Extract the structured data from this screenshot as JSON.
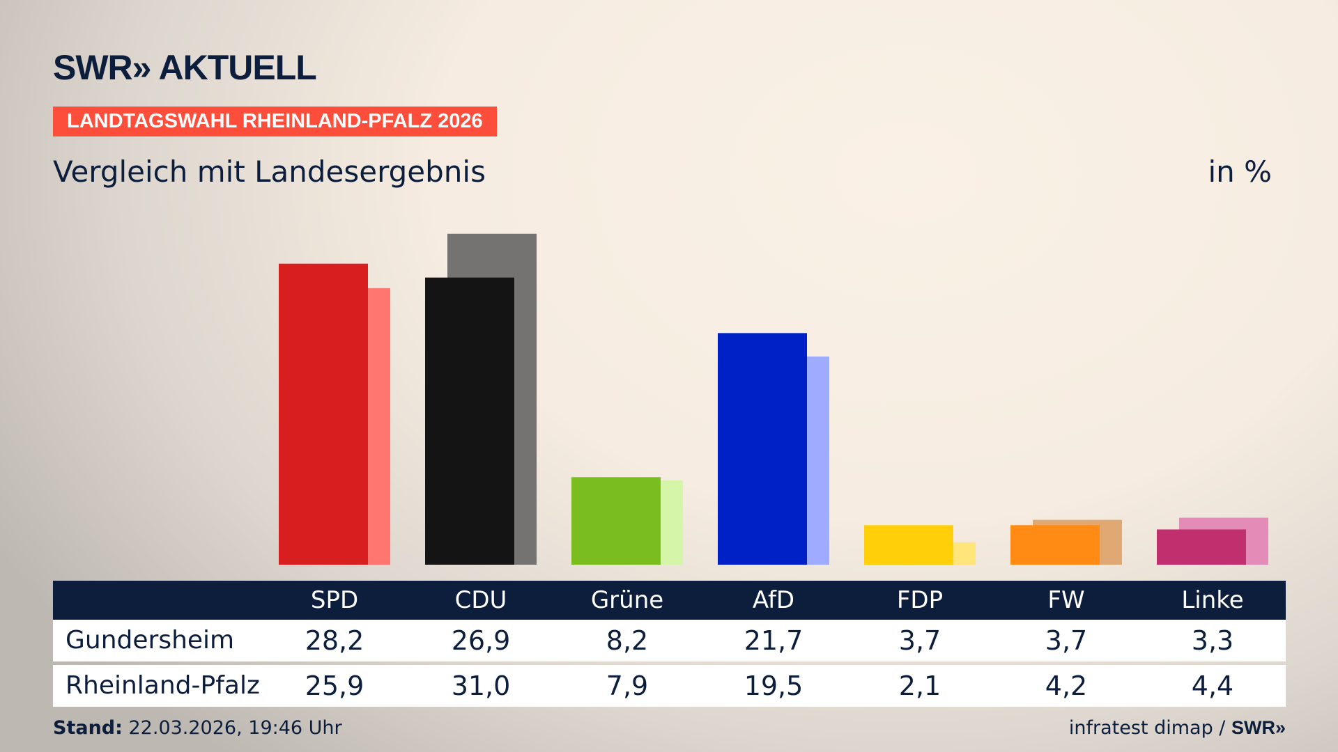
{
  "header": {
    "logo": "SWR» AKTUELL",
    "banner": "LANDTAGSWAHL RHEINLAND-PFALZ 2026",
    "subtitle": "Vergleich mit Landesergebnis",
    "unit": "in %"
  },
  "chart_data": {
    "type": "bar",
    "title": "Vergleich mit Landesergebnis",
    "ylabel": "in %",
    "categories": [
      "SPD",
      "CDU",
      "Grüne",
      "AfD",
      "FDP",
      "FW",
      "Linke"
    ],
    "series": [
      {
        "name": "Gundersheim",
        "values": [
          28.2,
          26.9,
          8.2,
          21.7,
          3.7,
          3.7,
          3.3
        ],
        "colors": [
          "#d81e1e",
          "#141414",
          "#7abd1e",
          "#0021c6",
          "#ffd00a",
          "#ff8a14",
          "#c0306f"
        ]
      },
      {
        "name": "Rheinland-Pfalz",
        "values": [
          25.9,
          31.0,
          7.9,
          19.5,
          2.1,
          4.2,
          4.4
        ],
        "colors": [
          "#ff7570",
          "#757371",
          "#d5f5a8",
          "#9fabff",
          "#ffe57a",
          "#e0a872",
          "#e38cb8"
        ]
      }
    ],
    "ylim": [
      0,
      31.0
    ],
    "grid": false,
    "legend": "table-below"
  },
  "table": {
    "headers": [
      "SPD",
      "CDU",
      "Grüne",
      "AfD",
      "FDP",
      "FW",
      "Linke"
    ],
    "rows": [
      {
        "label": "Gundersheim",
        "values": [
          "28,2",
          "26,9",
          "8,2",
          "21,7",
          "3,7",
          "3,7",
          "3,3"
        ]
      },
      {
        "label": "Rheinland-Pfalz",
        "values": [
          "25,9",
          "31,0",
          "7,9",
          "19,5",
          "2,1",
          "4,2",
          "4,4"
        ]
      }
    ]
  },
  "footer": {
    "stand_label": "Stand:",
    "stand_value": " 22.03.2026, 19:46 Uhr",
    "source": "infratest dimap / ",
    "source_logo": "SWR»"
  }
}
